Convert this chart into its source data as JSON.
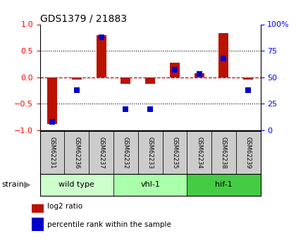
{
  "title": "GDS1379 / 21883",
  "samples": [
    "GSM62231",
    "GSM62236",
    "GSM62237",
    "GSM62232",
    "GSM62233",
    "GSM62235",
    "GSM62234",
    "GSM62238",
    "GSM62239"
  ],
  "log2_ratio": [
    -0.88,
    -0.04,
    0.8,
    -0.13,
    -0.12,
    0.27,
    0.08,
    0.83,
    -0.05
  ],
  "percentile_rank": [
    8,
    38,
    88,
    20,
    20,
    57,
    53,
    68,
    38
  ],
  "groups": [
    {
      "label": "wild type",
      "start": 0,
      "end": 3,
      "color": "#ccffcc"
    },
    {
      "label": "vhl-1",
      "start": 3,
      "end": 6,
      "color": "#aaffaa"
    },
    {
      "label": "hif-1",
      "start": 6,
      "end": 9,
      "color": "#44cc44"
    }
  ],
  "strain_label": "strain",
  "ylim_left": [
    -1,
    1
  ],
  "ylim_right": [
    0,
    100
  ],
  "yticks_left": [
    -1,
    -0.5,
    0,
    0.5,
    1
  ],
  "yticks_right": [
    0,
    25,
    50,
    75,
    100
  ],
  "yticklabels_right": [
    "0",
    "25",
    "50",
    "75",
    "100%"
  ],
  "bar_color": "#bb1100",
  "dot_color": "#0000cc",
  "zero_line_color": "#cc0000",
  "legend_items": [
    {
      "label": "log2 ratio",
      "color": "#bb1100"
    },
    {
      "label": "percentile rank within the sample",
      "color": "#0000cc"
    }
  ]
}
